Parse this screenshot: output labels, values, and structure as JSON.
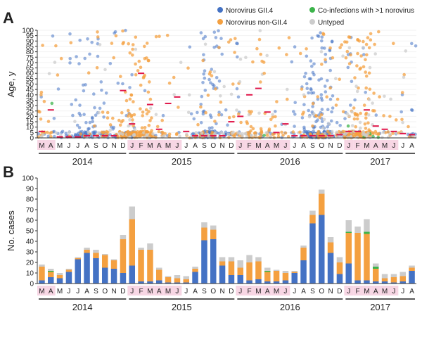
{
  "figure": {
    "panel_a_letter": "A",
    "panel_b_letter": "B"
  },
  "colors": {
    "gii4": "#4472c4",
    "non_gii4": "#f4a040",
    "coinfection": "#3cb44b",
    "untyped": "#cccccc",
    "median_marker": "#e0164a",
    "month_shade": "#f7d6e4"
  },
  "months": [
    "M",
    "A",
    "M",
    "J",
    "J",
    "A",
    "S",
    "O",
    "N",
    "D",
    "J",
    "F",
    "M",
    "A",
    "M",
    "J",
    "J",
    "A",
    "S",
    "O",
    "N",
    "D",
    "J",
    "F",
    "M",
    "A",
    "M",
    "J",
    "J",
    "A",
    "S",
    "O",
    "N",
    "D",
    "J",
    "F",
    "M",
    "A",
    "M",
    "J",
    "J",
    "A"
  ],
  "month_shaded": [
    1,
    1,
    0,
    0,
    0,
    0,
    0,
    0,
    0,
    0,
    1,
    1,
    1,
    1,
    1,
    1,
    0,
    0,
    0,
    0,
    0,
    0,
    1,
    1,
    1,
    1,
    1,
    1,
    0,
    0,
    0,
    0,
    0,
    0,
    1,
    1,
    1,
    1,
    1,
    1,
    0,
    0
  ],
  "years": [
    {
      "label": "2014",
      "start": 0,
      "end": 9
    },
    {
      "label": "2015",
      "start": 10,
      "end": 21
    },
    {
      "label": "2016",
      "start": 22,
      "end": 33
    },
    {
      "label": "2017",
      "start": 34,
      "end": 41
    }
  ],
  "chart_data": [
    {
      "type": "scatter",
      "panel": "A",
      "ylabel": "Age, y",
      "ylim": [
        0,
        100
      ],
      "yticks": [
        0,
        5,
        10,
        15,
        20,
        25,
        30,
        35,
        40,
        45,
        50,
        55,
        60,
        65,
        70,
        75,
        80,
        85,
        90,
        95,
        100
      ],
      "legend": [
        {
          "name": "Norovirus GII.4",
          "color": "#4472c4"
        },
        {
          "name": "Norovirus non-GII.4",
          "color": "#f4a040"
        },
        {
          "name": "Co-infections with >1 norovirus",
          "color": "#3cb44b"
        },
        {
          "name": "Untyped",
          "color": "#cccccc"
        }
      ],
      "legend_position": "top-right",
      "median_age_by_month": [
        6,
        26,
        1,
        1,
        1,
        2,
        2,
        2,
        2,
        44,
        13,
        60,
        31,
        8,
        32,
        38,
        6,
        2,
        2,
        2,
        2,
        15,
        20,
        40,
        46,
        24,
        5,
        13,
        2,
        2,
        2,
        2,
        2,
        3,
        6,
        6,
        26,
        11,
        8,
        6,
        4,
        3
      ]
    },
    {
      "type": "bar",
      "stacked": true,
      "panel": "B",
      "ylabel": "No. cases",
      "ylim": [
        0,
        100
      ],
      "yticks": [
        0,
        10,
        20,
        30,
        40,
        50,
        60,
        70,
        80,
        90,
        100
      ],
      "categories": [
        "M",
        "A",
        "M",
        "J",
        "J",
        "A",
        "S",
        "O",
        "N",
        "D",
        "J",
        "F",
        "M",
        "A",
        "M",
        "J",
        "J",
        "A",
        "S",
        "O",
        "N",
        "D",
        "J",
        "F",
        "M",
        "A",
        "M",
        "J",
        "J",
        "A",
        "S",
        "O",
        "N",
        "D",
        "J",
        "F",
        "M",
        "A",
        "M",
        "J",
        "J",
        "A"
      ],
      "series": [
        {
          "name": "Norovirus GII.4",
          "values": [
            3,
            6,
            5,
            11,
            23,
            29,
            24,
            15,
            14,
            10,
            17,
            2,
            2,
            3,
            1,
            1,
            1,
            11,
            41,
            42,
            17,
            8,
            8,
            3,
            4,
            2,
            2,
            3,
            10,
            22,
            57,
            65,
            29,
            9,
            19,
            3,
            3,
            2,
            2,
            1,
            2,
            12
          ]
        },
        {
          "name": "Norovirus non-GII.4",
          "values": [
            13,
            5,
            3,
            2,
            1,
            3,
            5,
            12,
            8,
            32,
            44,
            30,
            30,
            10,
            5,
            4,
            3,
            3,
            12,
            9,
            4,
            13,
            7,
            17,
            17,
            9,
            10,
            7,
            1,
            12,
            8,
            20,
            10,
            11,
            29,
            45,
            44,
            12,
            3,
            5,
            5,
            3
          ]
        },
        {
          "name": "Co-infections with >1 norovirus",
          "values": [
            0,
            1,
            0,
            0,
            0,
            0,
            0,
            0,
            0,
            0,
            0,
            0,
            0,
            0,
            0,
            0,
            0,
            0,
            0,
            0,
            0,
            0,
            0,
            0,
            0,
            1,
            0,
            0,
            0,
            0,
            0,
            0,
            0,
            0,
            1,
            0,
            2,
            2,
            0,
            0,
            0,
            0
          ]
        },
        {
          "name": "Untyped",
          "values": [
            2,
            2,
            2,
            1,
            1,
            2,
            3,
            1,
            1,
            4,
            12,
            2,
            6,
            2,
            1,
            3,
            3,
            2,
            5,
            4,
            4,
            4,
            7,
            7,
            4,
            3,
            1,
            2,
            1,
            2,
            4,
            4,
            5,
            5,
            11,
            6,
            12,
            3,
            4,
            3,
            4,
            2
          ]
        }
      ]
    }
  ]
}
